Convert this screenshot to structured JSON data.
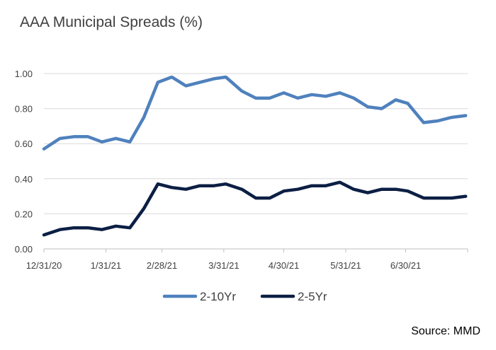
{
  "title": "AAA Municipal Spreads (%)",
  "source": "Source: MMD",
  "colors": {
    "series_1": "#4f81bd",
    "series_2": "#0c1f44",
    "grid": "#d9d9d9",
    "axis": "#bfbfbf"
  },
  "chart_data": {
    "type": "line",
    "title": "AAA Municipal Spreads (%)",
    "xlabel": "",
    "ylabel": "",
    "ylim": [
      0,
      1.0
    ],
    "y_ticks": [
      "0.00",
      "0.20",
      "0.40",
      "0.60",
      "0.80",
      "1.00"
    ],
    "x_range": [
      "12/31/20",
      "7/31/21"
    ],
    "x_ticks": [
      "12/31/20",
      "1/31/21",
      "2/28/21",
      "3/31/21",
      "4/30/21",
      "5/31/21",
      "6/30/21"
    ],
    "grid": true,
    "legend_position": "bottom",
    "x": [
      "2020-12-31",
      "2021-01-08",
      "2021-01-15",
      "2021-01-22",
      "2021-01-29",
      "2021-02-05",
      "2021-02-12",
      "2021-02-19",
      "2021-02-26",
      "2021-03-05",
      "2021-03-12",
      "2021-03-19",
      "2021-03-26",
      "2021-04-01",
      "2021-04-09",
      "2021-04-16",
      "2021-04-23",
      "2021-04-30",
      "2021-05-07",
      "2021-05-14",
      "2021-05-21",
      "2021-05-28",
      "2021-06-04",
      "2021-06-11",
      "2021-06-18",
      "2021-06-25",
      "2021-07-01",
      "2021-07-09",
      "2021-07-16",
      "2021-07-23",
      "2021-07-30"
    ],
    "series": [
      {
        "name": "2-10Yr",
        "values": [
          0.57,
          0.63,
          0.64,
          0.64,
          0.61,
          0.63,
          0.61,
          0.75,
          0.95,
          0.98,
          0.93,
          0.95,
          0.97,
          0.98,
          0.9,
          0.86,
          0.86,
          0.89,
          0.86,
          0.88,
          0.87,
          0.89,
          0.86,
          0.81,
          0.8,
          0.85,
          0.83,
          0.72,
          0.73,
          0.75,
          0.76
        ]
      },
      {
        "name": "2-5Yr",
        "values": [
          0.08,
          0.11,
          0.12,
          0.12,
          0.11,
          0.13,
          0.12,
          0.23,
          0.37,
          0.35,
          0.34,
          0.36,
          0.36,
          0.37,
          0.34,
          0.29,
          0.29,
          0.33,
          0.34,
          0.36,
          0.36,
          0.38,
          0.34,
          0.32,
          0.34,
          0.34,
          0.33,
          0.29,
          0.29,
          0.29,
          0.3
        ]
      }
    ]
  }
}
